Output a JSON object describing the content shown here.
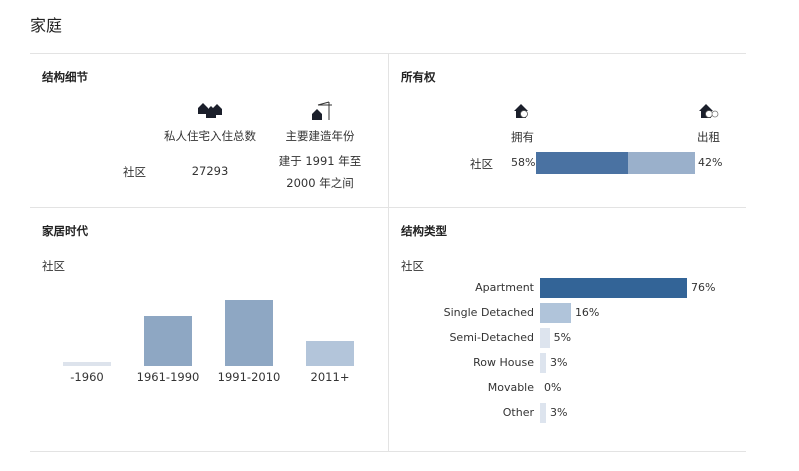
{
  "page_title": "家庭",
  "structure": {
    "heading": "结构细节",
    "row_label": "社区",
    "col1_label": "私人住宅入住总数",
    "col1_value": "27293",
    "col2_label": "主要建造年份",
    "col2_value_line1": "建于 1991 年至",
    "col2_value_line2": "2000 年之间",
    "icons": [
      "houses-icon",
      "house-crane-icon"
    ]
  },
  "ownership": {
    "heading": "所有权",
    "row_label": "社区",
    "own_label": "拥有",
    "rent_label": "出租",
    "own_pct": 58,
    "rent_pct": 42,
    "own_text": "58%",
    "rent_text": "42%",
    "colors": {
      "own": "#4a72a2",
      "rent": "#9ab0cb"
    }
  },
  "age": {
    "heading": "家居时代",
    "row_label": "社区",
    "chart_data": {
      "type": "bar",
      "categories": [
        "-1960",
        "1961-1990",
        "1991-2010",
        "2011+"
      ],
      "values": [
        3,
        34,
        45,
        17
      ],
      "colors": [
        "#dde3ec",
        "#8ea7c3",
        "#8ea7c3",
        "#b3c5da"
      ]
    }
  },
  "type": {
    "heading": "结构类型",
    "row_label": "社区",
    "chart_data": {
      "type": "bar",
      "orientation": "horizontal",
      "categories": [
        "Apartment",
        "Single Detached",
        "Semi-Detached",
        "Row House",
        "Movable",
        "Other"
      ],
      "values": [
        76,
        16,
        5,
        3,
        0,
        3
      ],
      "labels": [
        "76%",
        "16%",
        "5%",
        "3%",
        "0%",
        "3%"
      ],
      "colors": [
        "#336497",
        "#b0c4da",
        "#dde4ee",
        "#dde4ee",
        "#dde4ee",
        "#dde4ee"
      ]
    }
  }
}
